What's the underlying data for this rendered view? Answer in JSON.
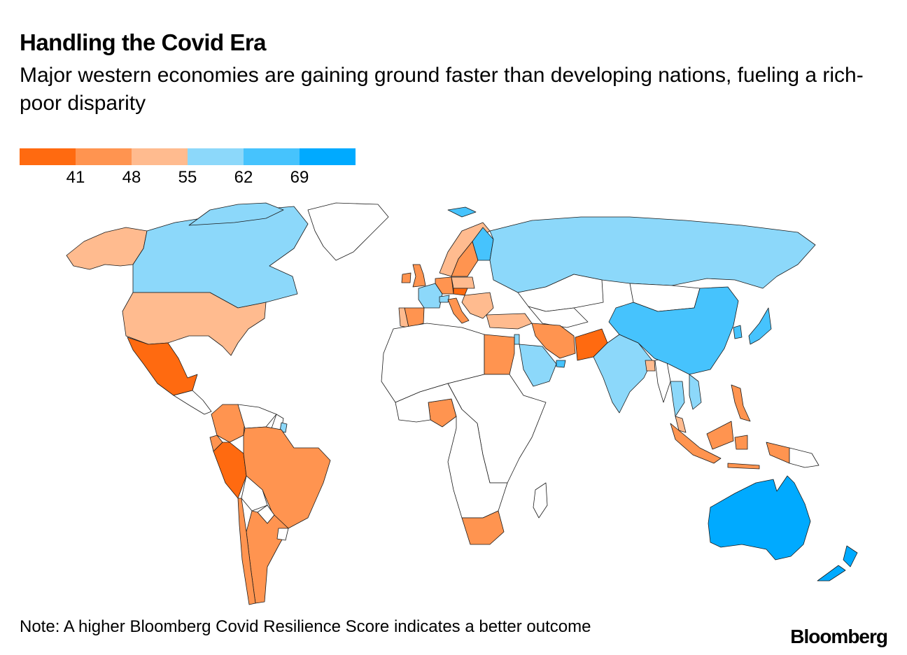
{
  "title": "Handling the Covid Era",
  "subtitle": "Major western economies are gaining ground faster than developing nations, fueling a rich-poor disparity",
  "legend": {
    "colors": [
      "#ff6a10",
      "#ff9450",
      "#ffbb8f",
      "#8cd8fa",
      "#46c3fd",
      "#00aaff"
    ],
    "ticks": [
      "41",
      "48",
      "55",
      "62",
      "69"
    ]
  },
  "note": "Note: A higher Bloomberg Covid Resilience Score indicates a better outcome",
  "brand": "Bloomberg",
  "colors": {
    "no_data": "#ffffff",
    "border": "#1a1a1a"
  },
  "map": {
    "score_class_by_region": {
      "Alaska": 3,
      "Canada": 4,
      "United States": 3,
      "Mexico": 1,
      "Greenland": 0,
      "Colombia": 2,
      "Venezuela": 0,
      "Peru": 1,
      "Brazil": 2,
      "Bolivia": 0,
      "Argentina": 2,
      "Chile": 2,
      "Guyana": 0,
      "Suriname": 0,
      "French Guiana": 4,
      "Ecuador": 2,
      "Paraguay": 0,
      "Uruguay": 0,
      "Iceland": 5,
      "United Kingdom": 2,
      "Ireland": 2,
      "Norway": 3,
      "Sweden": 2,
      "Finland": 5,
      "France": 4,
      "Spain": 2,
      "Portugal": 3,
      "Germany": 2,
      "Poland": 3,
      "Czechia": 1,
      "Italy": 2,
      "Switzerland": 4,
      "Balkans": 3,
      "Russia": 4,
      "Turkey": 3,
      "Iran": 2,
      "Pakistan": 1,
      "India": 4,
      "Saudi Arabia": 4,
      "Israel": 4,
      "UAE": 5,
      "Kazakhstan": 0,
      "Central Asia": 0,
      "Mongolia": 0,
      "China": 5,
      "South Korea": 5,
      "Japan": 5,
      "Bangladesh": 3,
      "Myanmar": 0,
      "Thailand": 4,
      "Vietnam": 4,
      "Malaysia": 3,
      "Philippines": 2,
      "Indonesia": 2,
      "Papua New Guinea": 0,
      "Egypt": 2,
      "Nigeria": 2,
      "South Africa": 2,
      "Africa (other)": 0,
      "Madagascar": 0,
      "Australia": 6,
      "New Zealand": 6
    }
  }
}
